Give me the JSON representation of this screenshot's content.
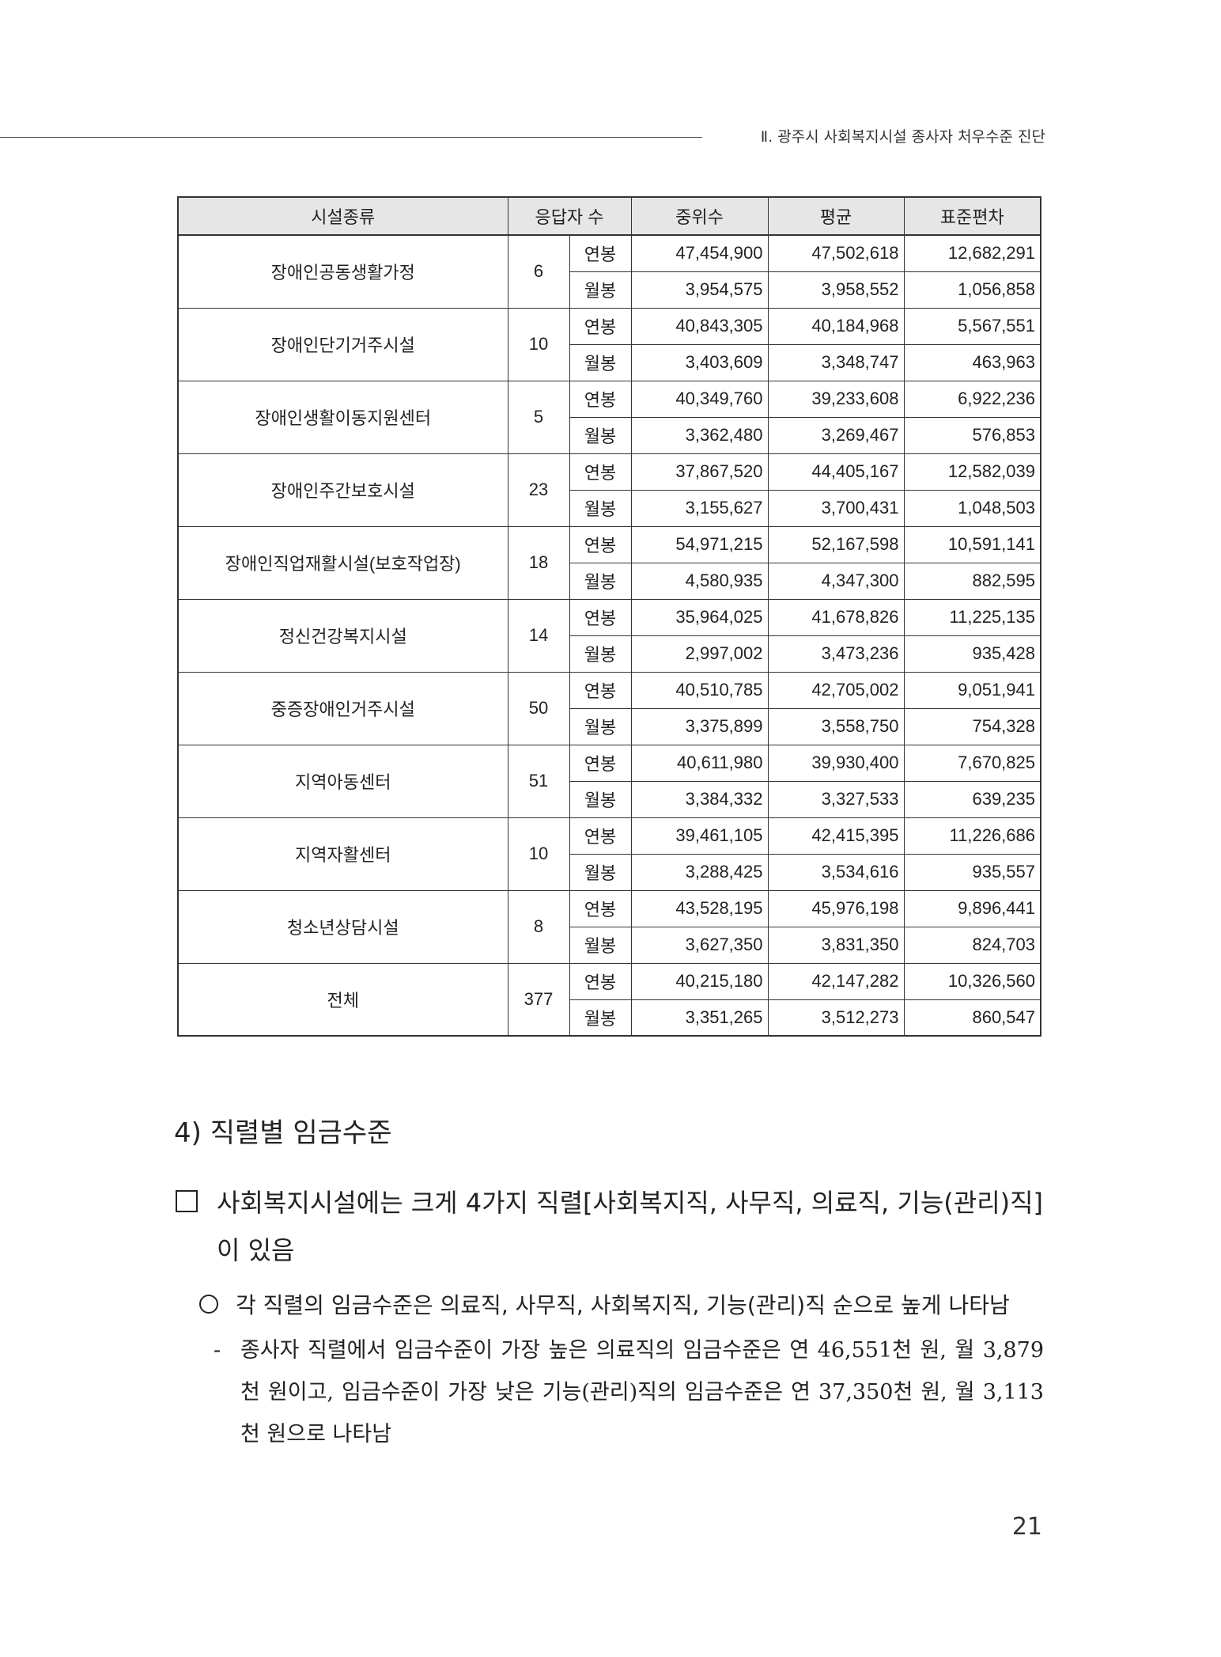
{
  "running_header": "Ⅱ. 광주시 사회복지시설 종사자 처우수준 진단",
  "table": {
    "headers": [
      "시설종류",
      "응답자 수",
      "중위수",
      "평균",
      "표준편차"
    ],
    "sub_labels": [
      "연봉",
      "월봉"
    ],
    "rows": [
      {
        "name": "장애인공동생활가정",
        "n": "6",
        "annual": [
          "47,454,900",
          "47,502,618",
          "12,682,291"
        ],
        "monthly": [
          "3,954,575",
          "3,958,552",
          "1,056,858"
        ]
      },
      {
        "name": "장애인단기거주시설",
        "n": "10",
        "annual": [
          "40,843,305",
          "40,184,968",
          "5,567,551"
        ],
        "monthly": [
          "3,403,609",
          "3,348,747",
          "463,963"
        ]
      },
      {
        "name": "장애인생활이동지원센터",
        "n": "5",
        "annual": [
          "40,349,760",
          "39,233,608",
          "6,922,236"
        ],
        "monthly": [
          "3,362,480",
          "3,269,467",
          "576,853"
        ]
      },
      {
        "name": "장애인주간보호시설",
        "n": "23",
        "annual": [
          "37,867,520",
          "44,405,167",
          "12,582,039"
        ],
        "monthly": [
          "3,155,627",
          "3,700,431",
          "1,048,503"
        ]
      },
      {
        "name": "장애인직업재활시설(보호작업장)",
        "n": "18",
        "annual": [
          "54,971,215",
          "52,167,598",
          "10,591,141"
        ],
        "monthly": [
          "4,580,935",
          "4,347,300",
          "882,595"
        ]
      },
      {
        "name": "정신건강복지시설",
        "n": "14",
        "annual": [
          "35,964,025",
          "41,678,826",
          "11,225,135"
        ],
        "monthly": [
          "2,997,002",
          "3,473,236",
          "935,428"
        ]
      },
      {
        "name": "중증장애인거주시설",
        "n": "50",
        "annual": [
          "40,510,785",
          "42,705,002",
          "9,051,941"
        ],
        "monthly": [
          "3,375,899",
          "3,558,750",
          "754,328"
        ]
      },
      {
        "name": "지역아동센터",
        "n": "51",
        "annual": [
          "40,611,980",
          "39,930,400",
          "7,670,825"
        ],
        "monthly": [
          "3,384,332",
          "3,327,533",
          "639,235"
        ]
      },
      {
        "name": "지역자활센터",
        "n": "10",
        "annual": [
          "39,461,105",
          "42,415,395",
          "11,226,686"
        ],
        "monthly": [
          "3,288,425",
          "3,534,616",
          "935,557"
        ]
      },
      {
        "name": "청소년상담시설",
        "n": "8",
        "annual": [
          "43,528,195",
          "45,976,198",
          "9,896,441"
        ],
        "monthly": [
          "3,627,350",
          "3,831,350",
          "824,703"
        ]
      },
      {
        "name": "전체",
        "n": "377",
        "annual": [
          "40,215,180",
          "42,147,282",
          "10,326,560"
        ],
        "monthly": [
          "3,351,265",
          "3,512,273",
          "860,547"
        ]
      }
    ]
  },
  "section": {
    "heading": "4) 직렬별 임금수준",
    "box_paragraph": "사회복지시설에는 크게 4가지 직렬[사회복지직, 사무직, 의료직, 기능(관리)직]이 있음",
    "circle_paragraph": "각 직렬의 임금수준은 의료직, 사무직, 사회복지직, 기능(관리)직 순으로 높게 나타남",
    "dash_paragraph": "종사자 직렬에서 임금수준이 가장 높은 의료직의 임금수준은 연 46,551천 원, 월 3,879천 원이고, 임금수준이 가장 낮은 기능(관리)직의 임금수준은 연 37,350천 원, 월 3,113천 원으로 나타남"
  },
  "page_number": "21"
}
